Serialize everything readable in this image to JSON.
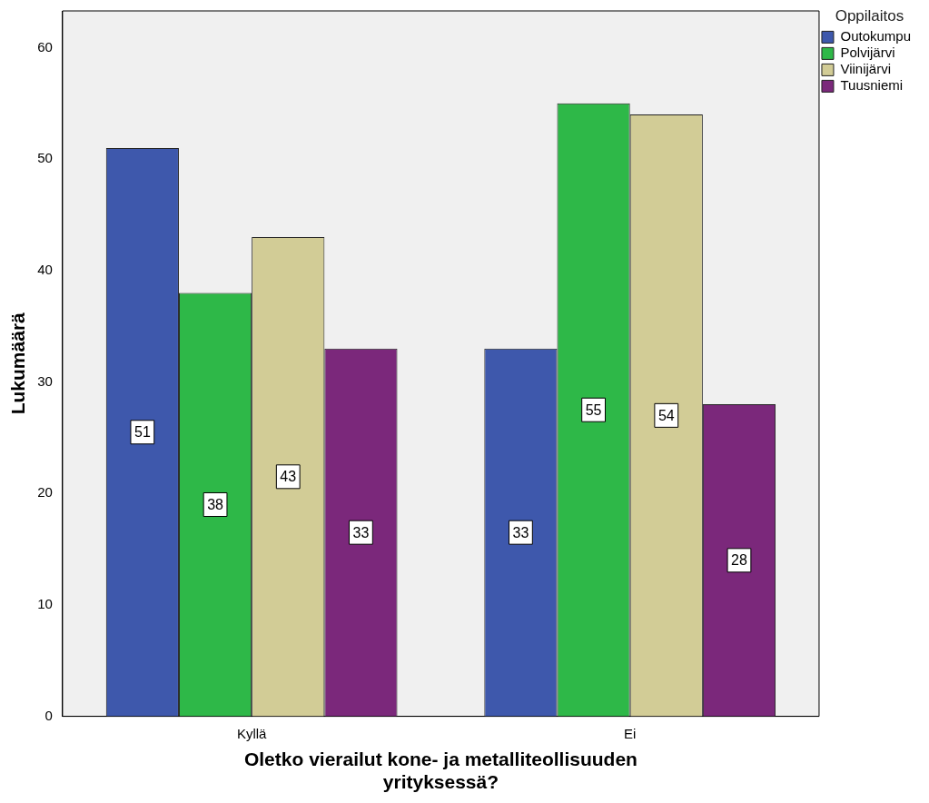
{
  "chart_data": {
    "type": "bar",
    "xlabel": "Oletko vierailut kone- ja metalliteollisuuden yrityksessä?",
    "ylabel": "Lukumäärä",
    "legend_title": "Oppilaitos",
    "legend": "top right",
    "categories": [
      "Kyllä",
      "Ei"
    ],
    "series": [
      {
        "name": "Outokumpu",
        "color": "#3e58ac",
        "values": [
          51,
          33
        ]
      },
      {
        "name": "Polvijärvi",
        "color": "#2eb848",
        "values": [
          38,
          55
        ]
      },
      {
        "name": "Viinijärvi",
        "color": "#d2cc96",
        "values": [
          43,
          54
        ]
      },
      {
        "name": "Tuusniemi",
        "color": "#7b287b",
        "values": [
          33,
          28
        ]
      }
    ],
    "ylim": [
      0,
      63.3
    ],
    "yticks": [
      0,
      10,
      20,
      30,
      40,
      50,
      60
    ],
    "grid": false,
    "data_labels": true
  }
}
